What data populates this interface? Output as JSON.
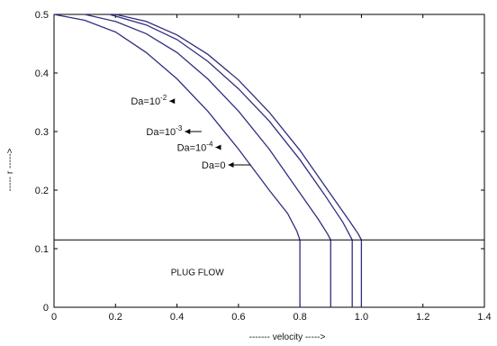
{
  "chart_data": {
    "type": "line",
    "title": "",
    "xlabel": "------- velocity ----->",
    "ylabel": "----- r ----->",
    "xlim": [
      0,
      1.4
    ],
    "ylim": [
      0,
      0.5
    ],
    "xticks": [
      "0",
      "0.2",
      "0.4",
      "0.6",
      "0.8",
      "1.0",
      "1.2",
      "1.4"
    ],
    "xtick_values": [
      0,
      0.2,
      0.4,
      0.6,
      0.8,
      1.0,
      1.2,
      1.4
    ],
    "yticks": [
      "0",
      "0.1",
      "0.2",
      "0.3",
      "0.4",
      "0.5"
    ],
    "ytick_values": [
      0,
      0.1,
      0.2,
      0.3,
      0.4,
      0.5
    ],
    "grid": false,
    "plug_flow_radius": 0.115,
    "plug_flow_label": "PLUG FLOW",
    "series": [
      {
        "name": "Da=10-2",
        "label": {
          "base": "Da=10",
          "sup": "-2"
        },
        "label_at": [
          0.25,
          0.352
        ],
        "arrow_to": 0.39,
        "points": [
          [
            0.0,
            0.5
          ],
          [
            0.1,
            0.49
          ],
          [
            0.2,
            0.47
          ],
          [
            0.3,
            0.435
          ],
          [
            0.4,
            0.39
          ],
          [
            0.5,
            0.335
          ],
          [
            0.6,
            0.27
          ],
          [
            0.7,
            0.2
          ],
          [
            0.76,
            0.16
          ],
          [
            0.79,
            0.13
          ],
          [
            0.8,
            0.115
          ],
          [
            0.8,
            0.0
          ]
        ]
      },
      {
        "name": "Da=10-3",
        "label": {
          "base": "Da=10",
          "sup": "-3"
        },
        "label_at": [
          0.3,
          0.3
        ],
        "arrow_to": 0.48,
        "points": [
          [
            0.1,
            0.5
          ],
          [
            0.2,
            0.488
          ],
          [
            0.3,
            0.467
          ],
          [
            0.4,
            0.435
          ],
          [
            0.5,
            0.39
          ],
          [
            0.6,
            0.335
          ],
          [
            0.7,
            0.27
          ],
          [
            0.8,
            0.195
          ],
          [
            0.86,
            0.15
          ],
          [
            0.89,
            0.125
          ],
          [
            0.9,
            0.115
          ],
          [
            0.9,
            0.0
          ]
        ]
      },
      {
        "name": "Da=10-4",
        "label": {
          "base": "Da=10",
          "sup": "-4"
        },
        "label_at": [
          0.4,
          0.273
        ],
        "arrow_to": 0.54,
        "points": [
          [
            0.18,
            0.5
          ],
          [
            0.3,
            0.482
          ],
          [
            0.4,
            0.457
          ],
          [
            0.5,
            0.42
          ],
          [
            0.6,
            0.373
          ],
          [
            0.7,
            0.318
          ],
          [
            0.8,
            0.252
          ],
          [
            0.88,
            0.192
          ],
          [
            0.94,
            0.145
          ],
          [
            0.96,
            0.125
          ],
          [
            0.97,
            0.115
          ],
          [
            0.97,
            0.0
          ]
        ]
      },
      {
        "name": "Da=0",
        "label": {
          "base": "Da=0",
          "sup": ""
        },
        "label_at": [
          0.48,
          0.243
        ],
        "arrow_to": 0.64,
        "points": [
          [
            0.2,
            0.5
          ],
          [
            0.3,
            0.488
          ],
          [
            0.4,
            0.465
          ],
          [
            0.5,
            0.432
          ],
          [
            0.6,
            0.388
          ],
          [
            0.7,
            0.333
          ],
          [
            0.8,
            0.268
          ],
          [
            0.9,
            0.193
          ],
          [
            0.96,
            0.148
          ],
          [
            0.99,
            0.125
          ],
          [
            1.0,
            0.115
          ],
          [
            1.0,
            0.0
          ]
        ]
      }
    ],
    "colors": {
      "curve": "#2e2e80",
      "axis": "#000000",
      "text": "#111111"
    }
  }
}
